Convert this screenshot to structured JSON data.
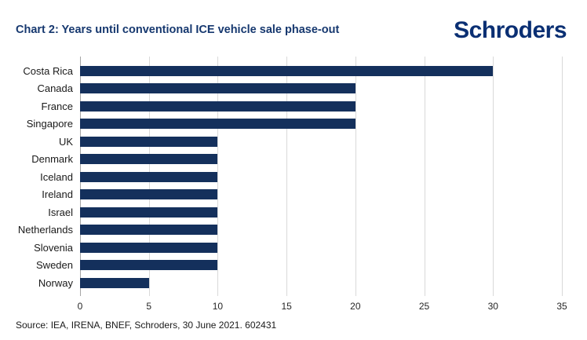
{
  "header": {
    "title": "Chart 2: Years until conventional ICE vehicle sale phase-out",
    "logo": "Schroders"
  },
  "chart_data": {
    "type": "bar",
    "orientation": "horizontal",
    "title": "Chart 2: Years until conventional ICE vehicle sale phase-out",
    "categories": [
      "Costa Rica",
      "Canada",
      "France",
      "Singapore",
      "UK",
      "Denmark",
      "Iceland",
      "Ireland",
      "Israel",
      "Netherlands",
      "Slovenia",
      "Sweden",
      "Norway"
    ],
    "values": [
      30,
      20,
      20,
      20,
      10,
      10,
      10,
      10,
      10,
      10,
      10,
      10,
      5
    ],
    "xlabel": "",
    "ylabel": "",
    "xlim": [
      0,
      35
    ],
    "xticks": [
      0,
      5,
      10,
      15,
      20,
      25,
      30,
      35
    ],
    "grid": "vertical",
    "legend": "none"
  },
  "footer": {
    "source": "Source: IEA, IRENA, BNEF, Schroders, 30 June 2021. 602431"
  },
  "colors": {
    "bar": "#14305c",
    "title": "#16386f",
    "logo": "#0a2f73",
    "gridline": "#d9d9d9",
    "axis_line": "#a6a6a6",
    "text": "#1a1a1a"
  }
}
